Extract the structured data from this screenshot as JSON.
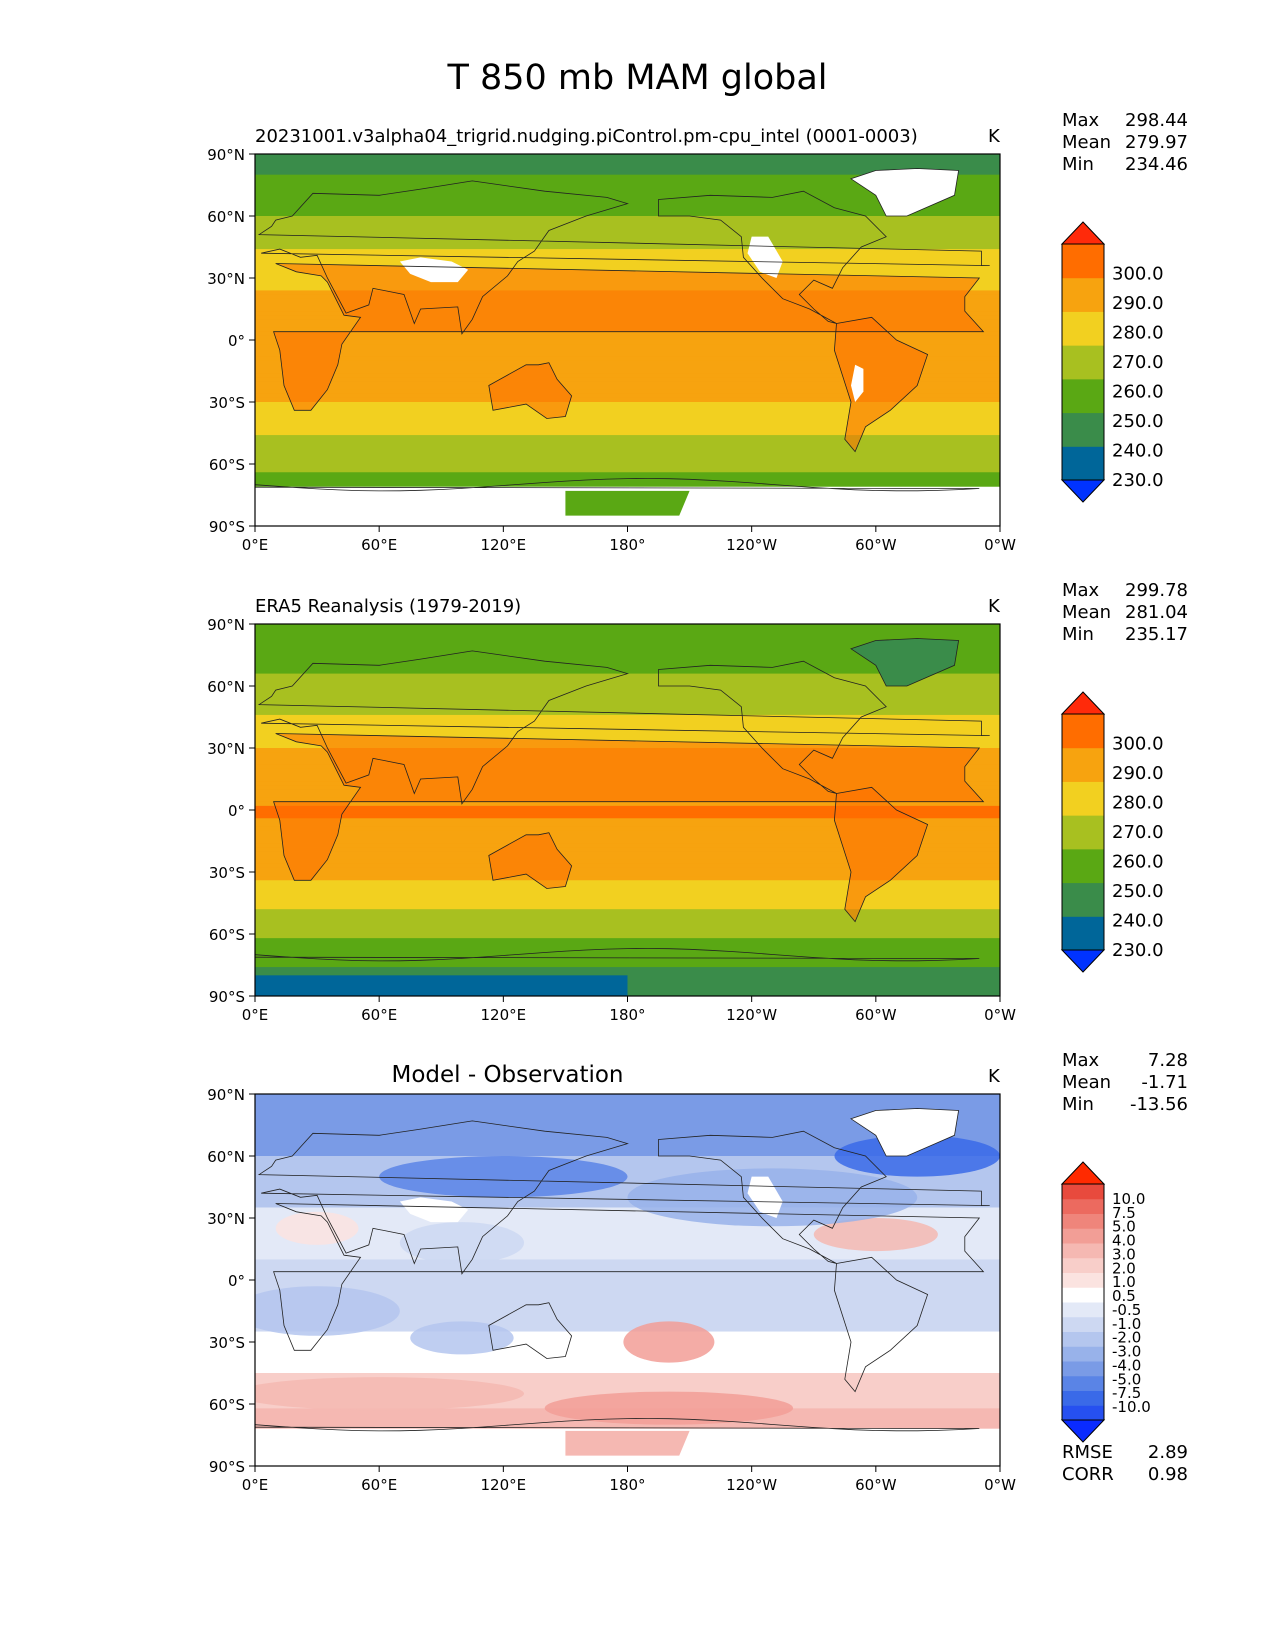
{
  "figure": {
    "title": "T 850 mb MAM global"
  },
  "colors": {
    "abs_levels": [
      "#0033ff",
      "#006699",
      "#3a8c4a",
      "#5aa814",
      "#a8c020",
      "#f2d020",
      "#f7a30f",
      "#ff6d00",
      "#ff2a0a"
    ],
    "diff_levels": [
      "#0a2bff",
      "#2650f0",
      "#3a6ae8",
      "#5a84e6",
      "#7a9be6",
      "#98b2ea",
      "#b4c6ee",
      "#cdd8f2",
      "#e3e9f7",
      "#ffffff",
      "#fbe3e0",
      "#f8cec9",
      "#f5b8b2",
      "#f29e96",
      "#ef857b",
      "#ec6a5f",
      "#e84a3d",
      "#ff2a00"
    ],
    "land_missing": "#ffffff",
    "coastline": "#222222"
  },
  "axes": {
    "lat_ticks": [
      "90°N",
      "60°N",
      "30°N",
      "0°",
      "30°S",
      "60°S",
      "90°S"
    ],
    "lon_ticks": [
      "0°E",
      "60°E",
      "120°E",
      "180°",
      "120°W",
      "60°W",
      "0°W"
    ]
  },
  "chart_data": [
    {
      "type": "heatmap",
      "title": "20231001.v3alpha04_trigrid.nudging.piControl.pm-cpu_intel (0001-0003)",
      "title_position": "left",
      "units": "K",
      "stats": {
        "max_label": "Max",
        "max": "298.44",
        "mean_label": "Mean",
        "mean": "279.97",
        "min_label": "Min",
        "min": "234.46"
      },
      "colorbar": {
        "labels": [
          "300.0",
          "290.0",
          "280.0",
          "270.0",
          "260.0",
          "250.0",
          "240.0",
          "230.0"
        ],
        "extend": "both",
        "colors": "abs_levels"
      },
      "xlim": [
        0,
        360
      ],
      "ylim": [
        -90,
        90
      ],
      "zonal_profile_K": {
        "lat": [
          90,
          60,
          30,
          0,
          -30,
          -60,
          -90
        ],
        "value": [
          245,
          260,
          278,
          289,
          280,
          262,
          248
        ]
      }
    },
    {
      "type": "heatmap",
      "title": "ERA5 Reanalysis (1979-2019)",
      "title_position": "left",
      "units": "K",
      "stats": {
        "max_label": "Max",
        "max": "299.78",
        "mean_label": "Mean",
        "mean": "281.04",
        "min_label": "Min",
        "min": "235.17"
      },
      "colorbar": {
        "labels": [
          "300.0",
          "290.0",
          "280.0",
          "270.0",
          "260.0",
          "250.0",
          "240.0",
          "230.0"
        ],
        "extend": "both",
        "colors": "abs_levels"
      },
      "xlim": [
        0,
        360
      ],
      "ylim": [
        -90,
        90
      ],
      "zonal_profile_K": {
        "lat": [
          90,
          60,
          30,
          0,
          -30,
          -60,
          -90
        ],
        "value": [
          250,
          262,
          280,
          291,
          282,
          262,
          240
        ]
      }
    },
    {
      "type": "heatmap",
      "title": "Model - Observation",
      "title_position": "center",
      "units": "K",
      "stats": {
        "max_label": "Max",
        "max": "7.28",
        "mean_label": "Mean",
        "mean": "-1.71",
        "min_label": "Min",
        "min": "-13.56"
      },
      "colorbar": {
        "labels": [
          "10.0",
          "7.5",
          "5.0",
          "4.0",
          "3.0",
          "2.0",
          "1.0",
          "0.5",
          "-0.5",
          "-1.0",
          "-2.0",
          "-3.0",
          "-4.0",
          "-5.0",
          "-7.5",
          "-10.0"
        ],
        "extend": "both",
        "colors": "diff_levels"
      },
      "metrics": {
        "rmse_label": "RMSE",
        "rmse": "2.89",
        "corr_label": "CORR",
        "corr": "0.98"
      },
      "xlim": [
        0,
        360
      ],
      "ylim": [
        -90,
        90
      ]
    }
  ]
}
